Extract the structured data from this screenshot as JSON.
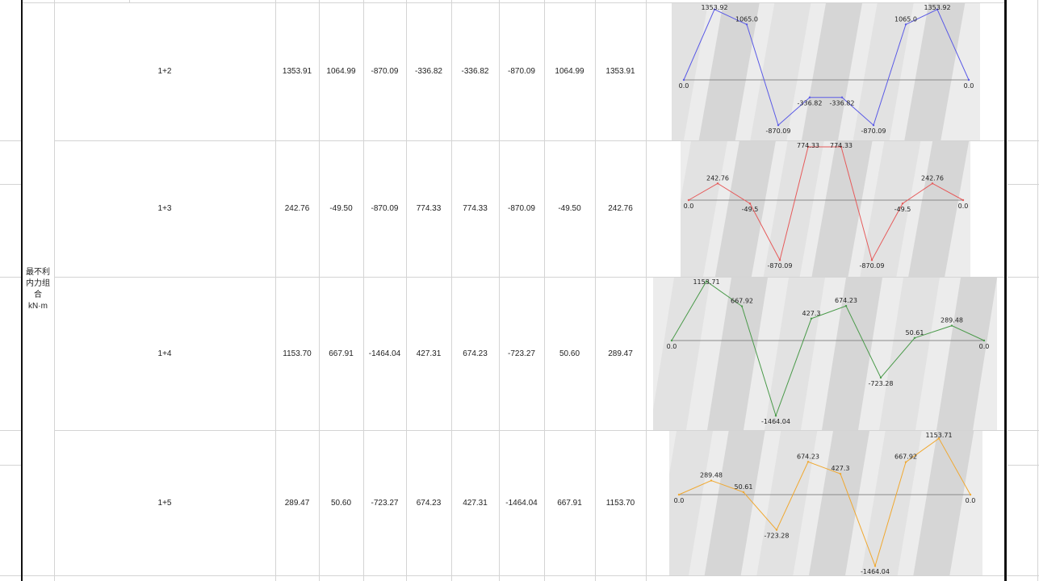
{
  "sheet": {
    "group_label_lines": [
      "最不利",
      "内力组",
      "合",
      "kN·m"
    ],
    "rows": [
      {
        "id": "r12",
        "label": "1+2",
        "values": [
          "1353.91",
          "1064.99",
          "-870.09",
          "-336.82",
          "-336.82",
          "-870.09",
          "1064.99",
          "1353.91"
        ]
      },
      {
        "id": "r13",
        "label": "1+3",
        "values": [
          "242.76",
          "-49.50",
          "-870.09",
          "774.33",
          "774.33",
          "-870.09",
          "-49.50",
          "242.76"
        ]
      },
      {
        "id": "r14",
        "label": "1+4",
        "values": [
          "1153.70",
          "667.91",
          "-1464.04",
          "427.31",
          "674.23",
          "-723.27",
          "50.60",
          "289.47"
        ]
      },
      {
        "id": "r15",
        "label": "1+5",
        "values": [
          "289.47",
          "50.60",
          "-723.27",
          "674.23",
          "427.31",
          "-1464.04",
          "667.91",
          "1153.70"
        ]
      }
    ]
  },
  "chart_data": [
    {
      "type": "line",
      "row": "1+2",
      "color": "#5a5ae6",
      "x": [
        0,
        1,
        2,
        3,
        4,
        5,
        6,
        7,
        8,
        9
      ],
      "y": [
        0.0,
        1353.92,
        1065.0,
        -870.09,
        -336.82,
        -336.82,
        -870.09,
        1065.0,
        1353.92,
        0.0
      ],
      "labels": [
        "0.0",
        "1353.92",
        "1065.0",
        "-870.09",
        "-336.82",
        "-336.82",
        "-870.09",
        "1065.0",
        "1353.92",
        "0.0"
      ]
    },
    {
      "type": "line",
      "row": "1+3",
      "color": "#e65a5a",
      "x": [
        0,
        1,
        2,
        3,
        4,
        5,
        6,
        7,
        8,
        9
      ],
      "y": [
        0.0,
        242.76,
        -49.5,
        -870.09,
        774.33,
        774.33,
        -870.09,
        -49.5,
        242.76,
        0.0
      ],
      "labels": [
        "0.0",
        "242.76",
        "-49.5",
        "-870.09",
        "774.33",
        "774.33",
        "-870.09",
        "-49.5",
        "242.76",
        "0.0"
      ]
    },
    {
      "type": "line",
      "row": "1+4",
      "color": "#4a9a4a",
      "x": [
        0,
        1,
        2,
        3,
        4,
        5,
        6,
        7,
        8,
        9
      ],
      "y": [
        0.0,
        1153.71,
        667.92,
        -1464.04,
        427.3,
        674.23,
        -723.28,
        50.61,
        289.48,
        0.0
      ],
      "labels": [
        "0.0",
        "1153.71",
        "667.92",
        "-1464.04",
        "427.3",
        "674.23",
        "-723.28",
        "50.61",
        "289.48",
        "0.0"
      ]
    },
    {
      "type": "line",
      "row": "1+5",
      "color": "#f0a830",
      "x": [
        0,
        1,
        2,
        3,
        4,
        5,
        6,
        7,
        8,
        9
      ],
      "y": [
        0.0,
        289.48,
        50.61,
        -723.28,
        674.23,
        427.3,
        -1464.04,
        667.92,
        1153.71,
        0.0
      ],
      "labels": [
        "0.0",
        "289.48",
        "50.61",
        "-723.28",
        "674.23",
        "427.3",
        "-1464.04",
        "667.92",
        "1153.71",
        "0.0"
      ]
    }
  ]
}
